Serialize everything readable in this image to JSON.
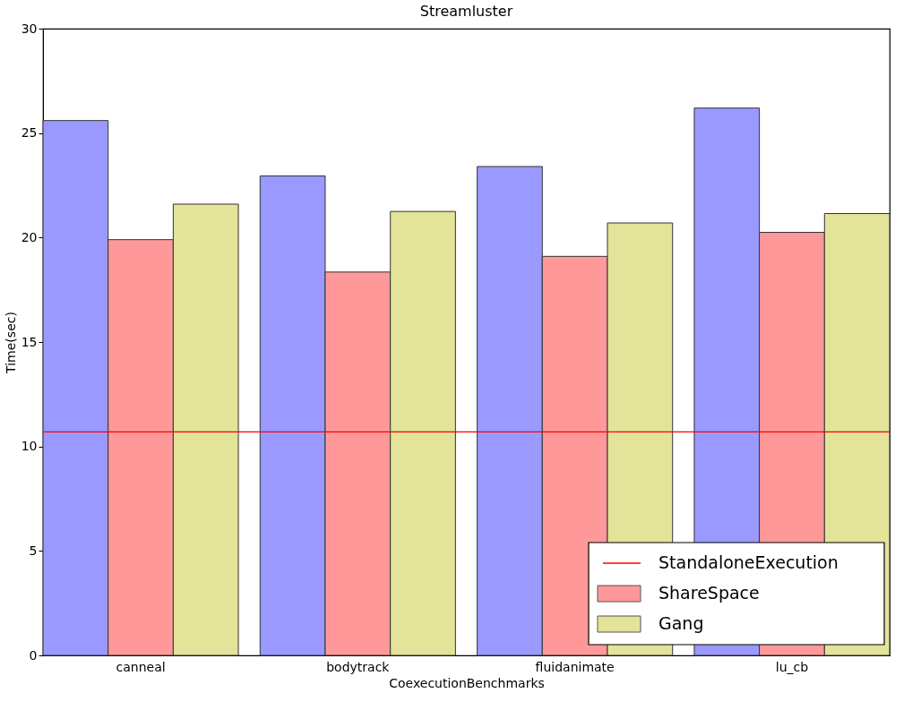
{
  "chart_data": {
    "type": "bar",
    "title": "Streamluster",
    "xlabel": "CoexecutionBenchmarks",
    "ylabel": "Time(sec)",
    "categories": [
      "canneal",
      "bodytrack",
      "fluidanimate",
      "lu_cb"
    ],
    "series": [
      {
        "color": "#9999ff",
        "values": [
          25.6,
          22.95,
          23.4,
          26.2
        ]
      },
      {
        "name": "ShareSpace",
        "color": "#ff9999",
        "values": [
          19.9,
          18.35,
          19.1,
          20.25
        ]
      },
      {
        "name": "Gang",
        "color": "#e3e399",
        "values": [
          21.6,
          21.25,
          20.7,
          21.15
        ]
      }
    ],
    "ref_lines": [
      {
        "axis": "y",
        "value": 10.7,
        "label": "StandaloneExecution",
        "color": "#ff0000"
      }
    ],
    "ylim": [
      0,
      30
    ],
    "yticks": [
      0,
      5,
      10,
      15,
      20,
      25,
      30
    ],
    "grid": false,
    "legend": "bottom right"
  }
}
